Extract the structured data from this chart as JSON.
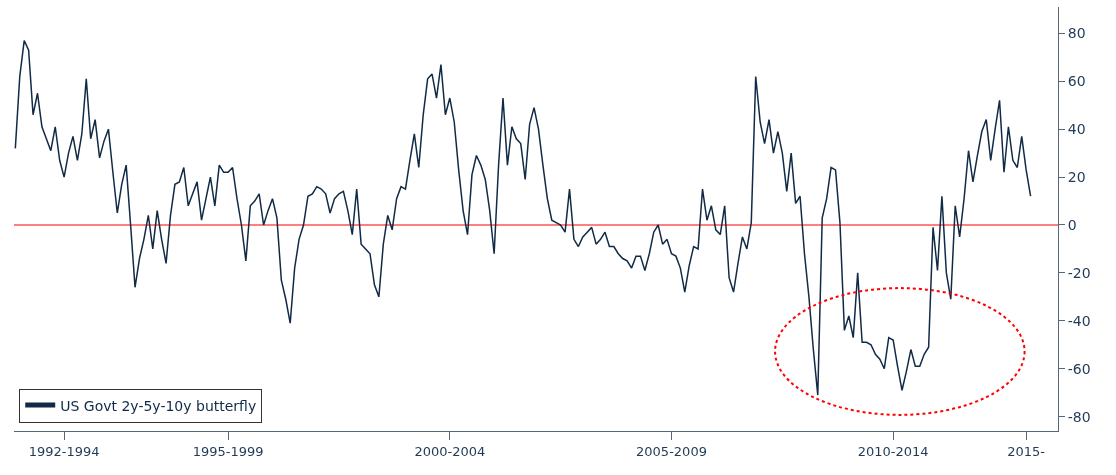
{
  "chart_data": {
    "type": "line",
    "categories": [
      null,
      null,
      null,
      null,
      null,
      null,
      null,
      null,
      null,
      null,
      null,
      "1992-1994",
      null,
      null,
      null,
      null,
      null,
      null,
      null,
      null,
      null,
      null,
      null,
      null,
      null,
      null,
      null,
      null,
      null,
      null,
      null,
      null,
      null,
      null,
      null,
      null,
      null,
      null,
      null,
      null,
      null,
      null,
      null,
      null,
      null,
      null,
      null,
      null,
      "1995-1999",
      null,
      null,
      null,
      null,
      null,
      null,
      null,
      null,
      null,
      null,
      null,
      null,
      null,
      null,
      null,
      null,
      null,
      null,
      null,
      null,
      null,
      null,
      null,
      null,
      null,
      null,
      null,
      null,
      null,
      null,
      null,
      null,
      null,
      null,
      null,
      null,
      null,
      null,
      null,
      null,
      null,
      null,
      null,
      null,
      null,
      null,
      null,
      null,
      null,
      "2000-2004",
      null,
      null,
      null,
      null,
      null,
      null,
      null,
      null,
      null,
      null,
      null,
      null,
      null,
      null,
      null,
      null,
      null,
      null,
      null,
      null,
      null,
      null,
      null,
      null,
      null,
      null,
      null,
      null,
      null,
      null,
      null,
      null,
      null,
      null,
      null,
      null,
      null,
      null,
      null,
      null,
      null,
      null,
      null,
      null,
      null,
      null,
      null,
      null,
      null,
      "2005-2009",
      null,
      null,
      null,
      null,
      null,
      null,
      null,
      null,
      null,
      null,
      null,
      null,
      null,
      null,
      null,
      null,
      null,
      null,
      null,
      null,
      null,
      null,
      null,
      null,
      null,
      null,
      null,
      null,
      null,
      null,
      null,
      null,
      null,
      null,
      null,
      null,
      null,
      null,
      null,
      null,
      null,
      null,
      null,
      null,
      null,
      null,
      null,
      null,
      null,
      "2010-2014",
      null,
      null,
      null,
      null,
      null,
      null,
      null,
      null,
      null,
      null,
      null,
      null,
      null,
      null,
      null,
      null,
      null,
      null,
      null,
      null,
      null,
      null,
      null,
      null,
      null,
      null,
      null,
      null,
      null,
      "2015-",
      null
    ],
    "series": [
      {
        "name": "US Govt 2y-5y-10y butterfly",
        "color": "#112a46",
        "values": [
          32,
          62,
          77,
          73,
          46,
          55,
          41,
          36,
          31,
          41,
          27,
          20,
          30,
          37,
          27,
          38,
          61,
          36,
          44,
          28,
          35,
          40,
          22,
          5,
          17,
          25,
          0,
          -26,
          -14,
          -6,
          4,
          -10,
          6,
          -6,
          -16,
          4,
          17,
          18,
          24,
          8,
          13,
          18,
          2,
          11,
          20,
          8,
          25,
          22,
          22,
          24,
          11,
          0,
          -15,
          8,
          10,
          13,
          0,
          6,
          11,
          3,
          -23,
          -31,
          -41,
          -18,
          -6,
          0,
          12,
          13,
          16,
          15,
          13,
          5,
          11,
          13,
          14,
          6,
          -4,
          15,
          -8,
          -10,
          -12,
          -25,
          -30,
          -8,
          4,
          -2,
          11,
          16,
          15,
          27,
          38,
          24,
          46,
          61,
          63,
          53,
          67,
          46,
          53,
          43,
          23,
          6,
          -4,
          21,
          29,
          25,
          19,
          6,
          -12,
          25,
          53,
          25,
          41,
          36,
          34,
          19,
          42,
          49,
          40,
          25,
          11,
          2,
          1,
          0,
          -3,
          15,
          -6,
          -9,
          -5,
          -3,
          -1,
          -8,
          -6,
          -3,
          -9,
          -9,
          -12,
          -14,
          -15,
          -18,
          -13,
          -13,
          -19,
          -12,
          -3,
          0,
          -8,
          -6,
          -12,
          -13,
          -18,
          -28,
          -17,
          -9,
          -10,
          15,
          2,
          8,
          -2,
          -4,
          8,
          -22,
          -28,
          -16,
          -5,
          -10,
          1,
          62,
          43,
          34,
          44,
          30,
          39,
          30,
          14,
          30,
          9,
          12,
          -12,
          -30,
          -52,
          -71,
          3,
          11,
          24,
          23,
          1,
          -44,
          -38,
          -47,
          -20,
          -49,
          -49,
          -50,
          -54,
          -56,
          -60,
          -47,
          -48,
          -59,
          -69,
          -61,
          -52,
          -59,
          -59,
          -54,
          -51,
          -1,
          -19,
          12,
          -20,
          -31,
          8,
          -5,
          11,
          31,
          18,
          29,
          39,
          44,
          27,
          40,
          52,
          22,
          41,
          27,
          24,
          37,
          23,
          12
        ]
      }
    ],
    "ylim": [
      -86,
      91
    ],
    "yticks": [
      -80,
      -60,
      -40,
      -20,
      0,
      20,
      40,
      60,
      80
    ],
    "ref_lines": [
      {
        "axis": "y",
        "value": 0,
        "color": "#ff0000"
      }
    ],
    "legend": "bottom left",
    "grid": false
  }
}
